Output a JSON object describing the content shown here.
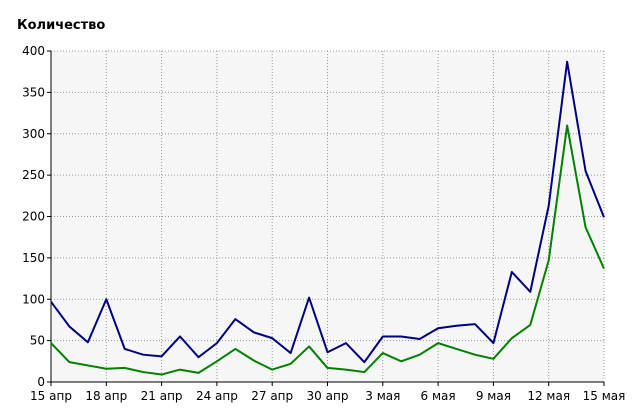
{
  "chart_data": {
    "type": "line",
    "title": "",
    "xlabel": "",
    "ylabel": "Количество",
    "ylim": [
      0,
      400
    ],
    "yticks": [
      0,
      50,
      100,
      150,
      200,
      250,
      300,
      350,
      400
    ],
    "grid": true,
    "legend": "none",
    "x": [
      "15 апр",
      "16 апр",
      "17 апр",
      "18 апр",
      "19 апр",
      "20 апр",
      "21 апр",
      "22 апр",
      "23 апр",
      "24 апр",
      "25 апр",
      "26 апр",
      "27 апр",
      "28 апр",
      "29 апр",
      "30 апр",
      "1 мая",
      "2 мая",
      "3 мая",
      "4 мая",
      "5 мая",
      "6 мая",
      "7 мая",
      "8 мая",
      "9 мая",
      "10 мая",
      "11 мая",
      "12 мая",
      "13 мая",
      "14 мая",
      "15 мая"
    ],
    "xtick_labels": [
      "15 апр",
      "18 апр",
      "21 апр",
      "24 апр",
      "27 апр",
      "30 апр",
      "3 мая",
      "6 мая",
      "9 мая",
      "12 мая",
      "15 мая"
    ],
    "series": [
      {
        "color": "#000080",
        "values": [
          97,
          67,
          48,
          100,
          40,
          33,
          31,
          55,
          30,
          47,
          76,
          60,
          53,
          35,
          102,
          36,
          47,
          24,
          55,
          55,
          52,
          65,
          68,
          70,
          47,
          133,
          109,
          213,
          387,
          255,
          199
        ]
      },
      {
        "color": "#008000",
        "values": [
          47,
          24,
          20,
          16,
          17,
          12,
          9,
          15,
          11,
          25,
          40,
          26,
          15,
          22,
          43,
          17,
          15,
          12,
          35,
          25,
          33,
          47,
          40,
          33,
          28,
          53,
          69,
          147,
          310,
          187,
          137
        ]
      }
    ]
  }
}
